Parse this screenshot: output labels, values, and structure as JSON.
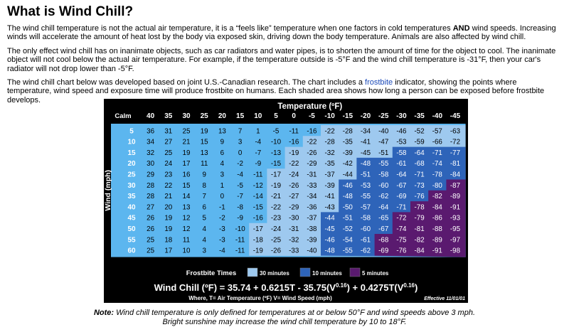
{
  "heading": "What is Wind Chill?",
  "para1_a": "The wind chill temperature is not the actual air temperature, it is a “feels like” temperature when one factors in cold temperatures ",
  "para1_and": "AND",
  "para1_b": " wind speeds. Increasing winds will accelerate the amount of heat lost by the body via exposed skin, driving down the body temperature. Animals are also affected by wind chill.",
  "para2": "The only effect wind chill has on inanimate objects, such as car radiators and water pipes, is to shorten the amount of time for the object to cool. The inanimate object will not cool below the actual air temperature. For example, if the temperature outside is -5°F and the wind chill temperature is -31°F, then your car's radiator will not drop lower than -5°F.",
  "para3_a": "The wind chill chart below was developed based on joint U.S.-Canadian research. The chart includes a ",
  "para3_link": "frostbite",
  "para3_b": " indicator, showing the points where temperature, wind speed and exposure time will produce frostbite on humans. Each shaded area shows how long a person can be exposed before frostbite develops.",
  "chart_data": {
    "type": "table",
    "title": "Temperature (ºF)",
    "row_axis_label": "Wind (mph)",
    "corner_label": "Calm",
    "temperatures": [
      "40",
      "35",
      "30",
      "25",
      "20",
      "15",
      "10",
      "5",
      "0",
      "-5",
      "-10",
      "-15",
      "-20",
      "-25",
      "-30",
      "-35",
      "-40",
      "-45"
    ],
    "winds": [
      "5",
      "10",
      "15",
      "20",
      "25",
      "30",
      "35",
      "40",
      "45",
      "50",
      "55",
      "60"
    ],
    "values": [
      [
        36,
        31,
        25,
        19,
        13,
        7,
        1,
        -5,
        -11,
        -16,
        -22,
        -28,
        -34,
        -40,
        -46,
        -52,
        -57,
        -63
      ],
      [
        34,
        27,
        21,
        15,
        9,
        3,
        -4,
        -10,
        -16,
        -22,
        -28,
        -35,
        -41,
        -47,
        -53,
        -59,
        -66,
        -72
      ],
      [
        32,
        25,
        19,
        13,
        6,
        0,
        -7,
        -13,
        -19,
        -26,
        -32,
        -39,
        -45,
        -51,
        -58,
        -64,
        -71,
        -77
      ],
      [
        30,
        24,
        17,
        11,
        4,
        -2,
        -9,
        -15,
        -22,
        -29,
        -35,
        -42,
        -48,
        -55,
        -61,
        -68,
        -74,
        -81
      ],
      [
        29,
        23,
        16,
        9,
        3,
        -4,
        -11,
        -17,
        -24,
        -31,
        -37,
        -44,
        -51,
        -58,
        -64,
        -71,
        -78,
        -84
      ],
      [
        28,
        22,
        15,
        8,
        1,
        -5,
        -12,
        -19,
        -26,
        -33,
        -39,
        -46,
        -53,
        -60,
        -67,
        -73,
        -80,
        -87
      ],
      [
        28,
        21,
        14,
        7,
        0,
        -7,
        -14,
        -21,
        -27,
        -34,
        -41,
        -48,
        -55,
        -62,
        -69,
        -76,
        -82,
        -89
      ],
      [
        27,
        20,
        13,
        6,
        -1,
        -8,
        -15,
        -22,
        -29,
        -36,
        -43,
        -50,
        -57,
        -64,
        -71,
        -78,
        -84,
        -91
      ],
      [
        26,
        19,
        12,
        5,
        -2,
        -9,
        -16,
        -23,
        -30,
        -37,
        -44,
        -51,
        -58,
        -65,
        -72,
        -79,
        -86,
        -93
      ],
      [
        26,
        19,
        12,
        4,
        -3,
        -10,
        -17,
        -24,
        -31,
        -38,
        -45,
        -52,
        -60,
        -67,
        -74,
        -81,
        -88,
        -95
      ],
      [
        25,
        18,
        11,
        4,
        -3,
        -11,
        -18,
        -25,
        -32,
        -39,
        -46,
        -54,
        -61,
        -68,
        -75,
        -82,
        -89,
        -97
      ],
      [
        25,
        17,
        10,
        3,
        -4,
        -11,
        -19,
        -26,
        -33,
        -40,
        -48,
        -55,
        -62,
        -69,
        -76,
        -84,
        -91,
        -98
      ]
    ],
    "zones": {
      "z30_first_col": [
        10,
        9,
        8,
        8,
        7,
        7,
        7,
        7,
        7,
        6,
        6,
        6
      ],
      "z10_first_col": [
        99,
        99,
        14,
        12,
        12,
        11,
        11,
        11,
        10,
        10,
        10,
        10
      ],
      "z5_first_col": [
        99,
        99,
        99,
        99,
        99,
        17,
        16,
        15,
        14,
        14,
        13,
        13
      ]
    },
    "legend_title": "Frostbite Times",
    "legend": [
      {
        "label": "30 minutes",
        "color": "#9ec9ef"
      },
      {
        "label": "10 minutes",
        "color": "#2e64b9"
      },
      {
        "label": "5 minutes",
        "color": "#5a1a6f"
      }
    ],
    "base_color": "#5cb6ef",
    "formula_main": "Wind Chill (ºF) = 35.74 + 0.6215T - 35.75(V",
    "formula_exp1": "0.16",
    "formula_mid": ") + 0.4275T(V",
    "formula_exp2": "0.16",
    "formula_end": ")",
    "formula_sub": "Where, T= Air Temperature (ºF)  V= Wind Speed (mph)",
    "effective": "Effective 11/01/01"
  },
  "note_label": "Note:",
  "note_line1": " Wind chill temperature is only defined for temperatures at or below 50°F and wind speeds above 3 mph.",
  "note_line2": "Bright sunshine may increase the wind chill temperature by 10 to 18°F."
}
